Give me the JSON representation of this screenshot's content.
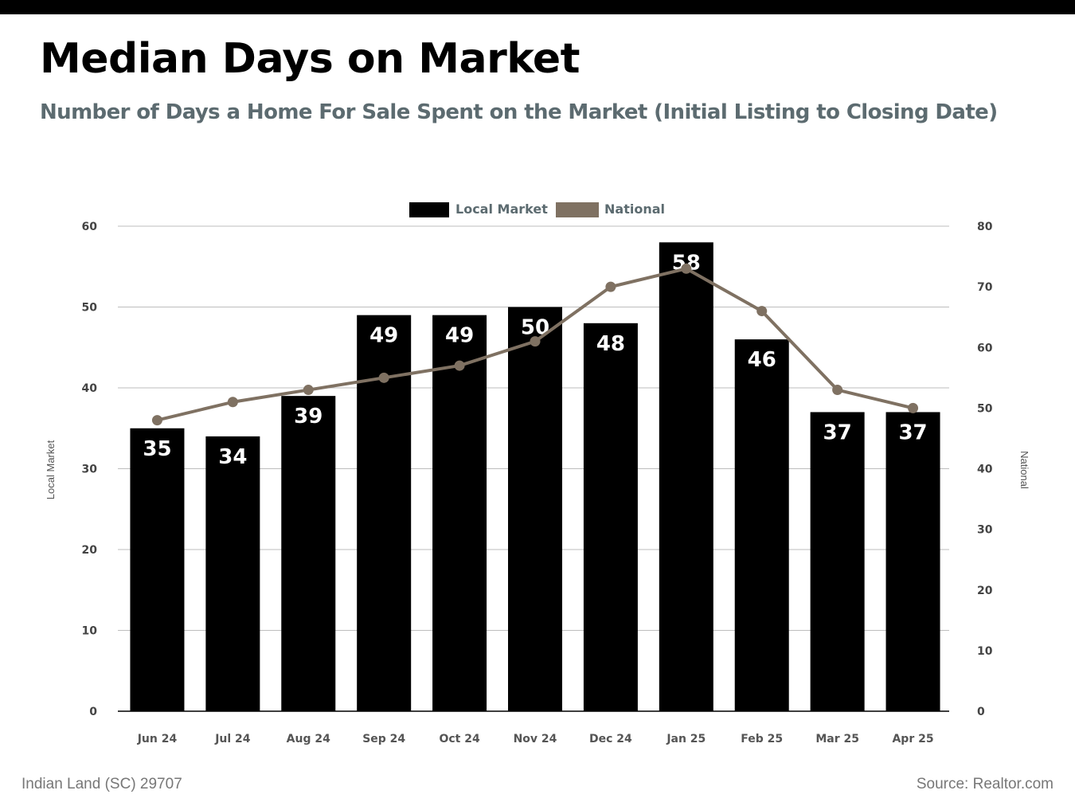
{
  "header": {
    "title": "Median Days on Market",
    "subtitle": "Number of Days a Home For Sale Spent on the Market (Initial Listing to Closing Date)"
  },
  "footer": {
    "location": "Indian Land (SC) 29707",
    "source": "Source: Realtor.com"
  },
  "chart_data": {
    "type": "bar",
    "categories": [
      "Jun 24",
      "Jul 24",
      "Aug 24",
      "Sep 24",
      "Oct 24",
      "Nov 24",
      "Dec 24",
      "Jan 25",
      "Feb 25",
      "Mar 25",
      "Apr 25"
    ],
    "series": [
      {
        "name": "Local Market",
        "type": "bar",
        "axis": "left",
        "color": "#000000",
        "values": [
          35,
          34,
          39,
          49,
          49,
          50,
          48,
          58,
          46,
          37,
          37
        ],
        "data_labels": [
          "35",
          "34",
          "39",
          "49",
          "49",
          "50",
          "48",
          "58",
          "46",
          "37",
          "37"
        ]
      },
      {
        "name": "National",
        "type": "line",
        "axis": "right",
        "color": "#7f7162",
        "values": [
          48,
          51,
          53,
          55,
          57,
          61,
          70,
          73,
          66,
          53,
          50
        ]
      }
    ],
    "ylabel": "Local Market",
    "y2label": "National",
    "ylim": [
      0,
      60
    ],
    "y2lim": [
      0,
      80
    ],
    "yticks": [
      "0",
      "10",
      "20",
      "30",
      "40",
      "50",
      "60"
    ],
    "y2ticks": [
      "0",
      "10",
      "20",
      "30",
      "40",
      "50",
      "60",
      "70",
      "80"
    ],
    "grid": true,
    "legend": "top-center"
  }
}
